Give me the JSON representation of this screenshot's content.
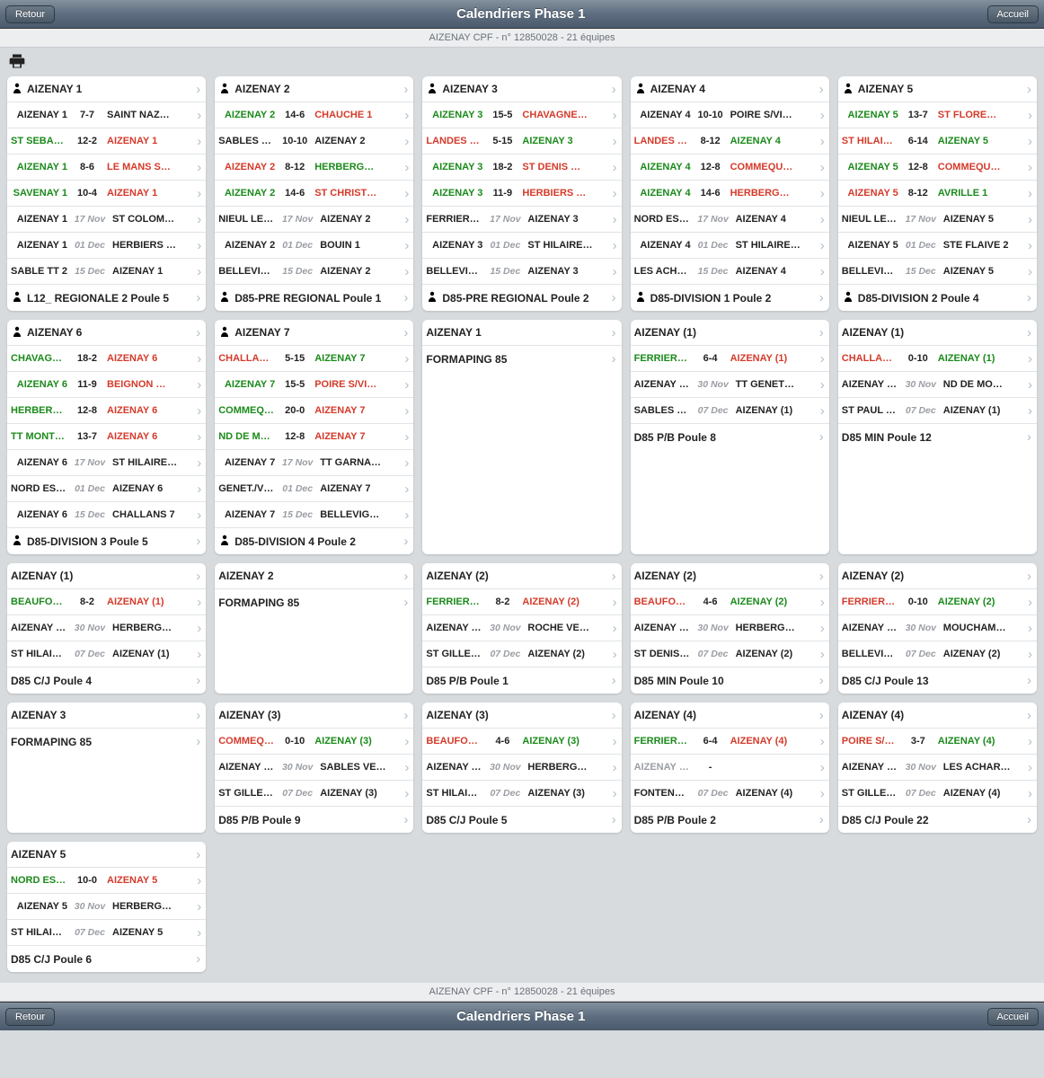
{
  "header": {
    "title": "Calendriers Phase 1",
    "back": "Retour",
    "home": "Accueil",
    "sub": "AIZENAY CPF - n° 12850028 - 21 équipes"
  },
  "colors": {
    "win": "#1a8a1a",
    "loss": "#d43a2a",
    "pending": "#9a9ea4",
    "normal": "#222222"
  },
  "cards": [
    {
      "title": "AIZENAY 1",
      "pin": true,
      "footer": "L12_ REGIONALE 2 Poule 5",
      "footerPin": true,
      "rows": [
        {
          "h": "AIZENAY 1",
          "s": "7-7",
          "a": "SAINT NAZ…",
          "hc": "black",
          "ac": "black"
        },
        {
          "h": "ST SEBASTI…",
          "s": "12-2",
          "a": "AIZENAY 1",
          "hc": "green",
          "ac": "red"
        },
        {
          "h": "AIZENAY 1",
          "s": "8-6",
          "a": "LE MANS S…",
          "hc": "green",
          "ac": "red"
        },
        {
          "h": "SAVENAY 1",
          "s": "10-4",
          "a": "AIZENAY 1",
          "hc": "green",
          "ac": "red"
        },
        {
          "h": "AIZENAY 1",
          "s": "17 Nov",
          "a": "ST COLOM…",
          "d": true
        },
        {
          "h": "AIZENAY 1",
          "s": "01 Dec",
          "a": "HERBIERS …",
          "d": true
        },
        {
          "h": "SABLE TT 2",
          "s": "15 Dec",
          "a": "AIZENAY 1",
          "d": true
        }
      ]
    },
    {
      "title": "AIZENAY 2",
      "pin": true,
      "footer": "D85-PRE REGIONAL Poule 1",
      "footerPin": true,
      "rows": [
        {
          "h": "AIZENAY 2",
          "s": "14-6",
          "a": "CHAUCHE 1",
          "hc": "green",
          "ac": "red"
        },
        {
          "h": "SABLES VE…",
          "s": "10-10",
          "a": "AIZENAY 2",
          "hc": "black",
          "ac": "black"
        },
        {
          "h": "AIZENAY 2",
          "s": "8-12",
          "a": "HERBERG…",
          "hc": "red",
          "ac": "green"
        },
        {
          "h": "AIZENAY 2",
          "s": "14-6",
          "a": "ST CHRIST…",
          "hc": "green",
          "ac": "red"
        },
        {
          "h": "NIEUL LE D…",
          "s": "17 Nov",
          "a": "AIZENAY 2",
          "d": true
        },
        {
          "h": "AIZENAY 2",
          "s": "01 Dec",
          "a": "BOUIN 1",
          "d": true
        },
        {
          "h": "BELLEVIGN…",
          "s": "15 Dec",
          "a": "AIZENAY 2",
          "d": true
        }
      ]
    },
    {
      "title": "AIZENAY 3",
      "pin": true,
      "footer": "D85-PRE REGIONAL Poule 2",
      "footerPin": true,
      "rows": [
        {
          "h": "AIZENAY 3",
          "s": "15-5",
          "a": "CHAVAGNE…",
          "hc": "green",
          "ac": "red"
        },
        {
          "h": "LANDES GE…",
          "s": "5-15",
          "a": "AIZENAY 3",
          "hc": "red",
          "ac": "green"
        },
        {
          "h": "AIZENAY 3",
          "s": "18-2",
          "a": "ST DENIS …",
          "hc": "green",
          "ac": "red"
        },
        {
          "h": "AIZENAY 3",
          "s": "11-9",
          "a": "HERBIERS …",
          "hc": "green",
          "ac": "red"
        },
        {
          "h": "FERRIERE V…",
          "s": "17 Nov",
          "a": "AIZENAY 3",
          "d": true
        },
        {
          "h": "AIZENAY 3",
          "s": "01 Dec",
          "a": "ST HILAIRE…",
          "d": true
        },
        {
          "h": "BELLEVIGN…",
          "s": "15 Dec",
          "a": "AIZENAY 3",
          "d": true
        }
      ]
    },
    {
      "title": "AIZENAY 4",
      "pin": true,
      "footer": "D85-DIVISION 1 Poule 2",
      "footerPin": true,
      "rows": [
        {
          "h": "AIZENAY 4",
          "s": "10-10",
          "a": "POIRE S/VI…",
          "hc": "black",
          "ac": "black"
        },
        {
          "h": "LANDES GE…",
          "s": "8-12",
          "a": "AIZENAY 4",
          "hc": "red",
          "ac": "green"
        },
        {
          "h": "AIZENAY 4",
          "s": "12-8",
          "a": "COMMEQU…",
          "hc": "green",
          "ac": "red"
        },
        {
          "h": "AIZENAY 4",
          "s": "14-6",
          "a": "HERBERG…",
          "hc": "green",
          "ac": "red"
        },
        {
          "h": "NORD EST …",
          "s": "17 Nov",
          "a": "AIZENAY 4",
          "d": true
        },
        {
          "h": "AIZENAY 4",
          "s": "01 Dec",
          "a": "ST HILAIRE…",
          "d": true
        },
        {
          "h": "LES ACHAR…",
          "s": "15 Dec",
          "a": "AIZENAY 4",
          "d": true
        }
      ]
    },
    {
      "title": "AIZENAY 5",
      "pin": true,
      "footer": "D85-DIVISION 2 Poule 4",
      "footerPin": true,
      "rows": [
        {
          "h": "AIZENAY 5",
          "s": "13-7",
          "a": "ST FLORE…",
          "hc": "green",
          "ac": "red"
        },
        {
          "h": "ST HILAIRE …",
          "s": "6-14",
          "a": "AIZENAY 5",
          "hc": "red",
          "ac": "green"
        },
        {
          "h": "AIZENAY 5",
          "s": "12-8",
          "a": "COMMEQU…",
          "hc": "green",
          "ac": "red"
        },
        {
          "h": "AIZENAY 5",
          "s": "8-12",
          "a": "AVRILLE 1",
          "hc": "red",
          "ac": "green"
        },
        {
          "h": "NIEUL LE D…",
          "s": "17 Nov",
          "a": "AIZENAY 5",
          "d": true
        },
        {
          "h": "AIZENAY 5",
          "s": "01 Dec",
          "a": "STE FLAIVE 2",
          "d": true
        },
        {
          "h": "BELLEVIGN…",
          "s": "15 Dec",
          "a": "AIZENAY 5",
          "d": true
        }
      ]
    },
    {
      "title": "AIZENAY 6",
      "pin": true,
      "footer": "D85-DIVISION 3 Poule 5",
      "footerPin": true,
      "rows": [
        {
          "h": "CHAVAGNES…",
          "s": "18-2",
          "a": "AIZENAY 6",
          "hc": "green",
          "ac": "red"
        },
        {
          "h": "AIZENAY 6",
          "s": "11-9",
          "a": "BEIGNON …",
          "hc": "green",
          "ac": "red"
        },
        {
          "h": "HERBERGE…",
          "s": "12-8",
          "a": "AIZENAY 6",
          "hc": "green",
          "ac": "red"
        },
        {
          "h": "TT MONTS …",
          "s": "13-7",
          "a": "AIZENAY 6",
          "hc": "green",
          "ac": "red"
        },
        {
          "h": "AIZENAY 6",
          "s": "17 Nov",
          "a": "ST HILAIRE…",
          "d": true
        },
        {
          "h": "NORD EST …",
          "s": "01 Dec",
          "a": "AIZENAY 6",
          "d": true
        },
        {
          "h": "AIZENAY 6",
          "s": "15 Dec",
          "a": "CHALLANS 7",
          "d": true
        }
      ]
    },
    {
      "title": "AIZENAY 7",
      "pin": true,
      "footer": "D85-DIVISION 4 Poule 2",
      "footerPin": true,
      "rows": [
        {
          "h": "CHALLANS 11",
          "s": "5-15",
          "a": "AIZENAY 7",
          "hc": "red",
          "ac": "green"
        },
        {
          "h": "AIZENAY 7",
          "s": "15-5",
          "a": "POIRE S/VI…",
          "hc": "green",
          "ac": "red"
        },
        {
          "h": "COMMEQUI…",
          "s": "20-0",
          "a": "AIZENAY 7",
          "hc": "green",
          "ac": "red"
        },
        {
          "h": "ND DE MON…",
          "s": "12-8",
          "a": "AIZENAY 7",
          "hc": "green",
          "ac": "red"
        },
        {
          "h": "AIZENAY 7",
          "s": "17 Nov",
          "a": "TT GARNA…",
          "d": true
        },
        {
          "h": "GENET./VEN…",
          "s": "01 Dec",
          "a": "AIZENAY 7",
          "d": true
        },
        {
          "h": "AIZENAY 7",
          "s": "15 Dec",
          "a": "BELLEVIG…",
          "d": true
        }
      ]
    },
    {
      "title": "AIZENAY 1",
      "pin": false,
      "rows": [
        {
          "simple": "FORMAPING 85"
        }
      ]
    },
    {
      "title": "AIZENAY (1)",
      "pin": false,
      "footer": "D85 P/B Poule 8",
      "rows": [
        {
          "h": "FERRIERE V…",
          "s": "6-4",
          "a": "AIZENAY (1)",
          "hc": "green",
          "ac": "red"
        },
        {
          "h": "AIZENAY (1)",
          "s": "30 Nov",
          "a": "TT GENET…",
          "d": true
        },
        {
          "h": "SABLES VE…",
          "s": "07 Dec",
          "a": "AIZENAY (1)",
          "d": true
        }
      ]
    },
    {
      "title": "AIZENAY (1)",
      "pin": false,
      "footer": "D85 MIN Poule 12",
      "rows": [
        {
          "h": "CHALLANS (1)",
          "s": "0-10",
          "a": "AIZENAY (1)",
          "hc": "red",
          "ac": "green"
        },
        {
          "h": "AIZENAY (1)",
          "s": "30 Nov",
          "a": "ND DE MO…",
          "d": true
        },
        {
          "h": "ST PAUL EN…",
          "s": "07 Dec",
          "a": "AIZENAY (1)",
          "d": true
        }
      ]
    },
    {
      "title": "AIZENAY (1)",
      "pin": false,
      "footer": "D85 C/J Poule 4",
      "rows": [
        {
          "h": "BEAUFOU 1",
          "s": "8-2",
          "a": "AIZENAY (1)",
          "hc": "green",
          "ac": "red"
        },
        {
          "h": "AIZENAY (1)",
          "s": "30 Nov",
          "a": "HERBERG…",
          "d": true
        },
        {
          "h": "ST HILAIRE …",
          "s": "07 Dec",
          "a": "AIZENAY (1)",
          "d": true
        }
      ]
    },
    {
      "title": "AIZENAY 2",
      "pin": false,
      "rows": [
        {
          "simple": "FORMAPING 85"
        }
      ]
    },
    {
      "title": "AIZENAY (2)",
      "pin": false,
      "footer": "D85 P/B Poule 1",
      "rows": [
        {
          "h": "FERRIERE V…",
          "s": "8-2",
          "a": "AIZENAY (2)",
          "hc": "green",
          "ac": "red"
        },
        {
          "h": "AIZENAY (2)",
          "s": "30 Nov",
          "a": "ROCHE VE…",
          "d": true
        },
        {
          "h": "ST GILLES …",
          "s": "07 Dec",
          "a": "AIZENAY (2)",
          "d": true
        }
      ]
    },
    {
      "title": "AIZENAY (2)",
      "pin": false,
      "footer": "D85 MIN Poule 10",
      "rows": [
        {
          "h": "BEAUFOU (1)",
          "s": "4-6",
          "a": "AIZENAY (2)",
          "hc": "red",
          "ac": "green"
        },
        {
          "h": "AIZENAY (2)",
          "s": "30 Nov",
          "a": "HERBERG…",
          "d": true
        },
        {
          "h": "ST DENIS C…",
          "s": "07 Dec",
          "a": "AIZENAY (2)",
          "d": true
        }
      ]
    },
    {
      "title": "AIZENAY (2)",
      "pin": false,
      "footer": "D85 C/J Poule 13",
      "rows": [
        {
          "h": "FERRIERE V…",
          "s": "0-10",
          "a": "AIZENAY (2)",
          "hc": "red",
          "ac": "green"
        },
        {
          "h": "AIZENAY (2)",
          "s": "30 Nov",
          "a": "MOUCHAM…",
          "d": true
        },
        {
          "h": "BELLEVIGN…",
          "s": "07 Dec",
          "a": "AIZENAY (2)",
          "d": true
        }
      ]
    },
    {
      "title": "AIZENAY 3",
      "pin": false,
      "rows": [
        {
          "simple": "FORMAPING 85"
        }
      ]
    },
    {
      "title": "AIZENAY (3)",
      "pin": false,
      "footer": "D85 P/B Poule 9",
      "rows": [
        {
          "h": "COMMEQUI…",
          "s": "0-10",
          "a": "AIZENAY (3)",
          "hc": "red",
          "ac": "green"
        },
        {
          "h": "AIZENAY (3)",
          "s": "30 Nov",
          "a": "SABLES VE…",
          "d": true
        },
        {
          "h": "ST GILLES …",
          "s": "07 Dec",
          "a": "AIZENAY (3)",
          "d": true
        }
      ]
    },
    {
      "title": "AIZENAY (3)",
      "pin": false,
      "footer": "D85 C/J Poule 5",
      "rows": [
        {
          "h": "BEAUFOU (2)",
          "s": "4-6",
          "a": "AIZENAY (3)",
          "hc": "red",
          "ac": "green"
        },
        {
          "h": "AIZENAY (3)",
          "s": "30 Nov",
          "a": "HERBERG…",
          "d": true
        },
        {
          "h": "ST HILAIRE …",
          "s": "07 Dec",
          "a": "AIZENAY (3)",
          "d": true
        }
      ]
    },
    {
      "title": "AIZENAY (4)",
      "pin": false,
      "footer": "D85 P/B Poule 2",
      "rows": [
        {
          "h": "FERRIERE V…",
          "s": "6-4",
          "a": "AIZENAY (4)",
          "hc": "green",
          "ac": "red"
        },
        {
          "h": "AIZENAY (4)",
          "s": "-",
          "a": "",
          "hc": "gray",
          "ac": "gray",
          "nd": true
        },
        {
          "h": "FONTENAY …",
          "s": "07 Dec",
          "a": "AIZENAY (4)",
          "d": true
        }
      ]
    },
    {
      "title": "AIZENAY (4)",
      "pin": false,
      "footer": "D85 C/J Poule 22",
      "rows": [
        {
          "h": "POIRE S/VIE…",
          "s": "3-7",
          "a": "AIZENAY (4)",
          "hc": "red",
          "ac": "green"
        },
        {
          "h": "AIZENAY (4)",
          "s": "30 Nov",
          "a": "LES ACHAR…",
          "d": true
        },
        {
          "h": "ST GILLES …",
          "s": "07 Dec",
          "a": "AIZENAY (4)",
          "d": true
        }
      ]
    },
    {
      "title": "AIZENAY 5",
      "pin": false,
      "footer": "D85 C/J Poule 6",
      "rows": [
        {
          "h": "NORD EST …",
          "s": "10-0",
          "a": "AIZENAY 5",
          "hc": "green",
          "ac": "red"
        },
        {
          "h": "AIZENAY 5",
          "s": "30 Nov",
          "a": "HERBERG…",
          "d": true
        },
        {
          "h": "ST HILAIRE …",
          "s": "07 Dec",
          "a": "AIZENAY 5",
          "d": true
        }
      ]
    }
  ]
}
